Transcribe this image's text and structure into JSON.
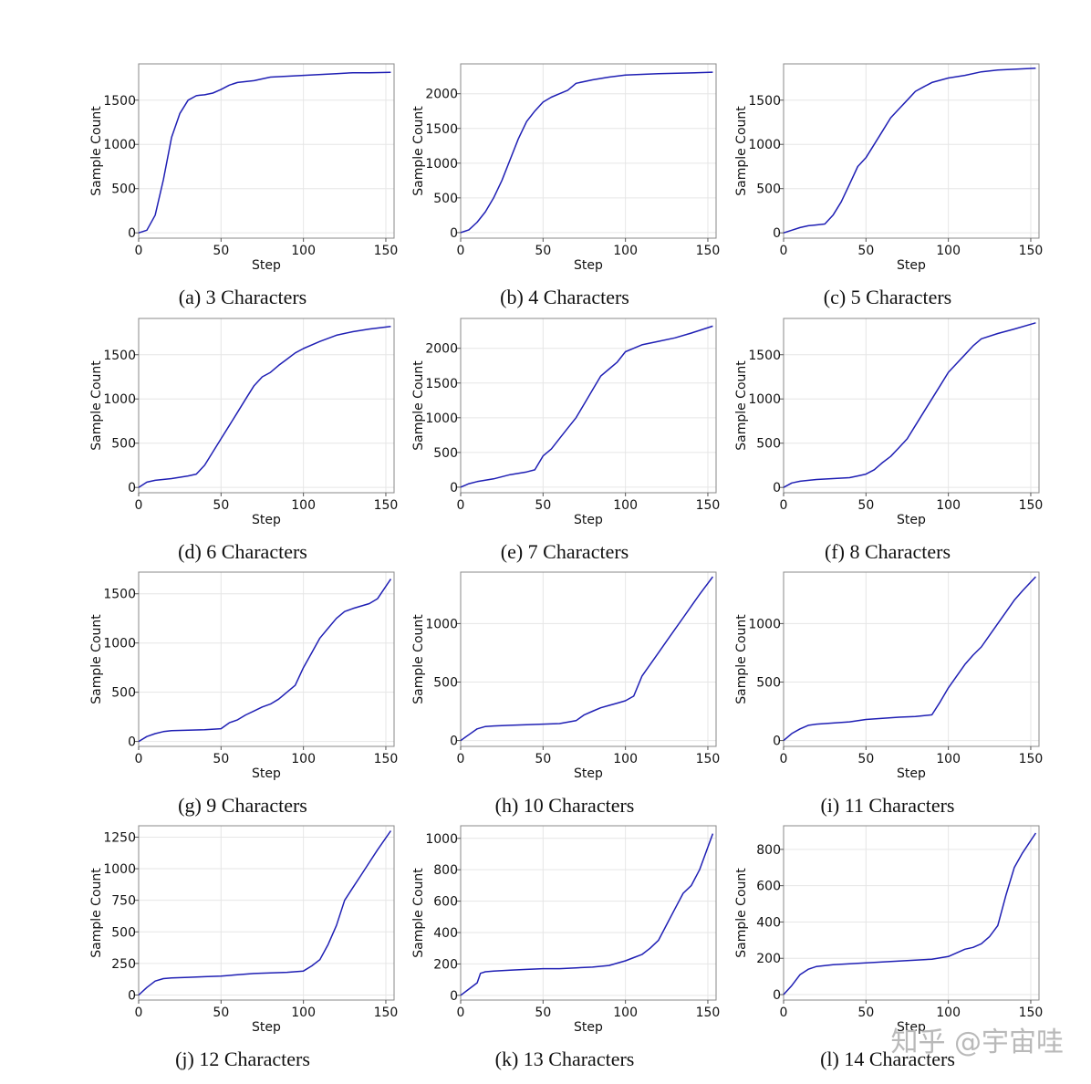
{
  "figure": {
    "watermark": "知乎 @宇宙哇"
  },
  "chart_data": [
    {
      "type": "line",
      "caption": "(a) 3 Characters",
      "xlabel": "Step",
      "ylabel": "Sample Count",
      "xlim": [
        0,
        155
      ],
      "ylim": [
        -60,
        1910
      ],
      "xticks": [
        0,
        50,
        100,
        150
      ],
      "yticks": [
        0,
        500,
        1000,
        1500
      ],
      "grid": true,
      "line_color": "#1f1fb4",
      "x": [
        0,
        5,
        10,
        15,
        20,
        25,
        30,
        35,
        37,
        40,
        45,
        50,
        55,
        60,
        70,
        80,
        100,
        120,
        130,
        140,
        153
      ],
      "y": [
        0,
        30,
        200,
        600,
        1080,
        1350,
        1500,
        1550,
        1555,
        1560,
        1580,
        1620,
        1670,
        1700,
        1720,
        1760,
        1780,
        1800,
        1810,
        1810,
        1815
      ]
    },
    {
      "type": "line",
      "caption": "(b) 4 Characters",
      "xlabel": "Step",
      "ylabel": "Sample Count",
      "xlim": [
        0,
        155
      ],
      "ylim": [
        -80,
        2430
      ],
      "xticks": [
        0,
        50,
        100,
        150
      ],
      "yticks": [
        0,
        500,
        1000,
        1500,
        2000
      ],
      "grid": true,
      "line_color": "#1f1fb4",
      "x": [
        0,
        5,
        10,
        15,
        20,
        25,
        30,
        35,
        40,
        45,
        50,
        55,
        60,
        65,
        70,
        80,
        90,
        100,
        120,
        140,
        153
      ],
      "y": [
        0,
        40,
        150,
        300,
        500,
        750,
        1050,
        1350,
        1600,
        1750,
        1880,
        1950,
        2000,
        2050,
        2150,
        2200,
        2240,
        2270,
        2290,
        2300,
        2310
      ]
    },
    {
      "type": "line",
      "caption": "(c) 5 Characters",
      "xlabel": "Step",
      "ylabel": "Sample Count",
      "xlim": [
        0,
        155
      ],
      "ylim": [
        -60,
        1910
      ],
      "xticks": [
        0,
        50,
        100,
        150
      ],
      "yticks": [
        0,
        500,
        1000,
        1500
      ],
      "grid": true,
      "line_color": "#1f1fb4",
      "x": [
        0,
        5,
        10,
        15,
        20,
        25,
        30,
        35,
        40,
        45,
        50,
        55,
        60,
        65,
        70,
        75,
        80,
        85,
        90,
        100,
        110,
        120,
        130,
        153
      ],
      "y": [
        0,
        30,
        60,
        80,
        90,
        100,
        200,
        350,
        550,
        750,
        850,
        1000,
        1150,
        1300,
        1400,
        1500,
        1600,
        1650,
        1700,
        1750,
        1780,
        1820,
        1840,
        1860
      ]
    },
    {
      "type": "line",
      "caption": "(d) 6 Characters",
      "xlabel": "Step",
      "ylabel": "Sample Count",
      "xlim": [
        0,
        155
      ],
      "ylim": [
        -60,
        1910
      ],
      "xticks": [
        0,
        50,
        100,
        150
      ],
      "yticks": [
        0,
        500,
        1000,
        1500
      ],
      "grid": true,
      "line_color": "#1f1fb4",
      "x": [
        0,
        5,
        10,
        20,
        30,
        35,
        40,
        45,
        50,
        55,
        60,
        65,
        70,
        75,
        80,
        85,
        90,
        95,
        100,
        110,
        120,
        130,
        140,
        153
      ],
      "y": [
        0,
        60,
        80,
        100,
        130,
        150,
        250,
        400,
        550,
        700,
        850,
        1000,
        1150,
        1250,
        1300,
        1380,
        1450,
        1520,
        1570,
        1650,
        1720,
        1760,
        1790,
        1820
      ]
    },
    {
      "type": "line",
      "caption": "(e) 7 Characters",
      "xlabel": "Step",
      "ylabel": "Sample Count",
      "xlim": [
        0,
        155
      ],
      "ylim": [
        -80,
        2430
      ],
      "xticks": [
        0,
        50,
        100,
        150
      ],
      "yticks": [
        0,
        500,
        1000,
        1500,
        2000
      ],
      "grid": true,
      "line_color": "#1f1fb4",
      "x": [
        0,
        5,
        10,
        20,
        30,
        40,
        45,
        50,
        55,
        60,
        65,
        70,
        75,
        80,
        85,
        90,
        95,
        100,
        110,
        120,
        130,
        140,
        153
      ],
      "y": [
        0,
        50,
        80,
        120,
        180,
        220,
        250,
        450,
        550,
        700,
        850,
        1000,
        1200,
        1400,
        1600,
        1700,
        1800,
        1950,
        2050,
        2100,
        2150,
        2220,
        2320
      ]
    },
    {
      "type": "line",
      "caption": "(f) 8 Characters",
      "xlabel": "Step",
      "ylabel": "Sample Count",
      "xlim": [
        0,
        155
      ],
      "ylim": [
        -60,
        1910
      ],
      "xticks": [
        0,
        50,
        100,
        150
      ],
      "yticks": [
        0,
        500,
        1000,
        1500
      ],
      "grid": true,
      "line_color": "#1f1fb4",
      "x": [
        0,
        5,
        10,
        20,
        30,
        40,
        45,
        50,
        55,
        60,
        65,
        70,
        75,
        80,
        85,
        90,
        95,
        100,
        105,
        110,
        115,
        120,
        130,
        140,
        153
      ],
      "y": [
        0,
        50,
        70,
        90,
        100,
        110,
        130,
        150,
        200,
        280,
        350,
        450,
        550,
        700,
        850,
        1000,
        1150,
        1300,
        1400,
        1500,
        1600,
        1680,
        1740,
        1790,
        1860
      ]
    },
    {
      "type": "line",
      "caption": "(g) 9 Characters",
      "xlabel": "Step",
      "ylabel": "Sample Count",
      "xlim": [
        0,
        155
      ],
      "ylim": [
        -50,
        1720
      ],
      "xticks": [
        0,
        50,
        100,
        150
      ],
      "yticks": [
        0,
        500,
        1000,
        1500
      ],
      "grid": true,
      "line_color": "#1f1fb4",
      "x": [
        0,
        5,
        10,
        15,
        20,
        30,
        40,
        50,
        55,
        60,
        65,
        70,
        75,
        80,
        85,
        90,
        95,
        100,
        105,
        110,
        115,
        120,
        125,
        130,
        140,
        145,
        153
      ],
      "y": [
        0,
        50,
        80,
        100,
        110,
        115,
        120,
        130,
        190,
        220,
        270,
        310,
        350,
        380,
        430,
        500,
        570,
        750,
        900,
        1050,
        1150,
        1250,
        1320,
        1350,
        1400,
        1450,
        1650
      ]
    },
    {
      "type": "line",
      "caption": "(h) 10 Characters",
      "xlabel": "Step",
      "ylabel": "Sample Count",
      "xlim": [
        0,
        155
      ],
      "ylim": [
        -50,
        1440
      ],
      "xticks": [
        0,
        50,
        100,
        150
      ],
      "yticks": [
        0,
        500,
        1000
      ],
      "grid": true,
      "line_color": "#1f1fb4",
      "x": [
        0,
        5,
        10,
        15,
        20,
        30,
        40,
        50,
        60,
        70,
        75,
        80,
        85,
        90,
        95,
        100,
        105,
        110,
        115,
        120,
        125,
        130,
        135,
        140,
        145,
        153
      ],
      "y": [
        0,
        50,
        100,
        120,
        125,
        130,
        135,
        140,
        145,
        170,
        220,
        250,
        280,
        300,
        320,
        340,
        380,
        550,
        650,
        750,
        850,
        950,
        1050,
        1150,
        1250,
        1400
      ]
    },
    {
      "type": "line",
      "caption": "(i) 11 Characters",
      "xlabel": "Step",
      "ylabel": "Sample Count",
      "xlim": [
        0,
        155
      ],
      "ylim": [
        -50,
        1440
      ],
      "xticks": [
        0,
        50,
        100,
        150
      ],
      "yticks": [
        0,
        500,
        1000
      ],
      "grid": true,
      "line_color": "#1f1fb4",
      "x": [
        0,
        5,
        10,
        15,
        20,
        30,
        40,
        50,
        60,
        70,
        80,
        90,
        95,
        100,
        105,
        110,
        115,
        120,
        125,
        130,
        135,
        140,
        145,
        153
      ],
      "y": [
        0,
        60,
        100,
        130,
        140,
        150,
        160,
        180,
        190,
        200,
        205,
        220,
        330,
        450,
        550,
        650,
        730,
        800,
        900,
        1000,
        1100,
        1200,
        1280,
        1400
      ]
    },
    {
      "type": "line",
      "caption": "(j) 12 Characters",
      "xlabel": "Step",
      "ylabel": "Sample Count",
      "xlim": [
        0,
        155
      ],
      "ylim": [
        -40,
        1340
      ],
      "xticks": [
        0,
        50,
        100,
        150
      ],
      "yticks": [
        0,
        250,
        500,
        750,
        1000,
        1250
      ],
      "grid": true,
      "line_color": "#1f1fb4",
      "x": [
        0,
        5,
        10,
        15,
        20,
        30,
        40,
        50,
        60,
        70,
        80,
        90,
        100,
        105,
        110,
        115,
        120,
        125,
        130,
        135,
        140,
        145,
        153
      ],
      "y": [
        0,
        60,
        110,
        130,
        135,
        140,
        145,
        150,
        160,
        170,
        175,
        180,
        190,
        230,
        280,
        400,
        550,
        750,
        850,
        950,
        1050,
        1150,
        1300
      ]
    },
    {
      "type": "line",
      "caption": "(k) 13 Characters",
      "xlabel": "Step",
      "ylabel": "Sample Count",
      "xlim": [
        0,
        155
      ],
      "ylim": [
        -30,
        1080
      ],
      "xticks": [
        0,
        50,
        100,
        150
      ],
      "yticks": [
        0,
        200,
        400,
        600,
        800,
        1000
      ],
      "grid": true,
      "line_color": "#1f1fb4",
      "x": [
        0,
        5,
        10,
        12,
        15,
        20,
        30,
        40,
        50,
        60,
        70,
        80,
        90,
        100,
        105,
        110,
        115,
        120,
        125,
        130,
        135,
        140,
        145,
        153
      ],
      "y": [
        0,
        40,
        80,
        140,
        150,
        155,
        160,
        165,
        170,
        170,
        175,
        180,
        190,
        220,
        240,
        260,
        300,
        350,
        450,
        550,
        650,
        700,
        800,
        1030
      ]
    },
    {
      "type": "line",
      "caption": "(l) 14 Characters",
      "xlabel": "Step",
      "ylabel": "Sample Count",
      "xlim": [
        0,
        155
      ],
      "ylim": [
        -30,
        930
      ],
      "xticks": [
        0,
        50,
        100,
        150
      ],
      "yticks": [
        0,
        200,
        400,
        600,
        800
      ],
      "grid": true,
      "line_color": "#1f1fb4",
      "x": [
        0,
        5,
        10,
        15,
        20,
        30,
        40,
        50,
        60,
        70,
        80,
        90,
        100,
        105,
        110,
        115,
        120,
        125,
        130,
        135,
        140,
        145,
        153
      ],
      "y": [
        0,
        50,
        110,
        140,
        155,
        165,
        170,
        175,
        180,
        185,
        190,
        195,
        210,
        230,
        250,
        260,
        280,
        320,
        380,
        550,
        700,
        780,
        890
      ]
    }
  ]
}
